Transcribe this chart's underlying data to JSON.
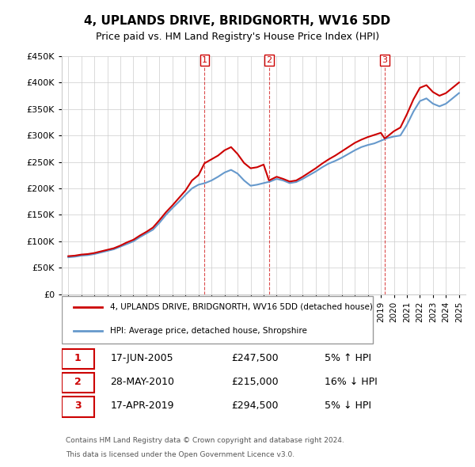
{
  "title": "4, UPLANDS DRIVE, BRIDGNORTH, WV16 5DD",
  "subtitle": "Price paid vs. HM Land Registry's House Price Index (HPI)",
  "footer1": "Contains HM Land Registry data © Crown copyright and database right 2024.",
  "footer2": "This data is licensed under the Open Government Licence v3.0.",
  "legend_property": "4, UPLANDS DRIVE, BRIDGNORTH, WV16 5DD (detached house)",
  "legend_hpi": "HPI: Average price, detached house, Shropshire",
  "transactions": [
    {
      "num": 1,
      "date": "17-JUN-2005",
      "price": 247500,
      "year": 2005.46,
      "pct": "5%",
      "dir": "↑"
    },
    {
      "num": 2,
      "date": "28-MAY-2010",
      "price": 215000,
      "year": 2010.41,
      "pct": "16%",
      "dir": "↓"
    },
    {
      "num": 3,
      "date": "17-APR-2019",
      "price": 294500,
      "year": 2019.29,
      "pct": "5%",
      "dir": "↓"
    }
  ],
  "property_color": "#cc0000",
  "hpi_color": "#6699cc",
  "grid_color": "#cccccc",
  "background_color": "#ffffff",
  "ylim": [
    0,
    450000
  ],
  "yticks": [
    0,
    50000,
    100000,
    150000,
    200000,
    250000,
    300000,
    350000,
    400000,
    450000
  ],
  "ytick_labels": [
    "£0",
    "£50K",
    "£100K",
    "£150K",
    "£200K",
    "£250K",
    "£300K",
    "£350K",
    "£400K",
    "£450K"
  ],
  "xlim": [
    1994.5,
    2025.5
  ],
  "hpi_data": {
    "years": [
      1995,
      1995.5,
      1996,
      1996.5,
      1997,
      1997.5,
      1998,
      1998.5,
      1999,
      1999.5,
      2000,
      2000.5,
      2001,
      2001.5,
      2002,
      2002.5,
      2003,
      2003.5,
      2004,
      2004.5,
      2005,
      2005.5,
      2006,
      2006.5,
      2007,
      2007.5,
      2008,
      2008.5,
      2009,
      2009.5,
      2010,
      2010.5,
      2011,
      2011.5,
      2012,
      2012.5,
      2013,
      2013.5,
      2014,
      2014.5,
      2015,
      2015.5,
      2016,
      2016.5,
      2017,
      2017.5,
      2018,
      2018.5,
      2019,
      2019.5,
      2020,
      2020.5,
      2021,
      2021.5,
      2022,
      2022.5,
      2023,
      2023.5,
      2024,
      2024.5,
      2025
    ],
    "values": [
      70000,
      71000,
      73000,
      74000,
      76000,
      79000,
      82000,
      85000,
      90000,
      95000,
      100000,
      108000,
      115000,
      122000,
      135000,
      150000,
      163000,
      175000,
      188000,
      200000,
      207000,
      210000,
      215000,
      222000,
      230000,
      235000,
      228000,
      215000,
      205000,
      207000,
      210000,
      213000,
      218000,
      215000,
      210000,
      212000,
      218000,
      225000,
      232000,
      240000,
      247000,
      252000,
      258000,
      265000,
      272000,
      278000,
      282000,
      285000,
      290000,
      295000,
      298000,
      300000,
      320000,
      345000,
      365000,
      370000,
      360000,
      355000,
      360000,
      370000,
      380000
    ]
  },
  "property_data": {
    "years": [
      1995,
      1995.5,
      1996,
      1996.5,
      1997,
      1997.5,
      1998,
      1998.5,
      1999,
      1999.5,
      2000,
      2000.5,
      2001,
      2001.5,
      2002,
      2002.5,
      2003,
      2003.5,
      2004,
      2004.5,
      2005,
      2005.46,
      2005.5,
      2006,
      2006.5,
      2007,
      2007.5,
      2008,
      2008.5,
      2009,
      2009.5,
      2010,
      2010.41,
      2010.5,
      2011,
      2011.5,
      2012,
      2012.5,
      2013,
      2013.5,
      2014,
      2014.5,
      2015,
      2015.5,
      2016,
      2016.5,
      2017,
      2017.5,
      2018,
      2018.5,
      2019,
      2019.29,
      2019.5,
      2020,
      2020.5,
      2021,
      2021.5,
      2022,
      2022.5,
      2023,
      2023.5,
      2024,
      2024.5,
      2025
    ],
    "values": [
      72000,
      73000,
      75000,
      76000,
      78000,
      81000,
      84000,
      87000,
      92000,
      98000,
      103000,
      111000,
      118000,
      126000,
      140000,
      155000,
      168000,
      182000,
      196000,
      215000,
      225000,
      247500,
      248000,
      255000,
      262000,
      272000,
      278000,
      265000,
      248000,
      238000,
      240000,
      245000,
      215000,
      216000,
      222000,
      218000,
      213000,
      215000,
      222000,
      230000,
      238000,
      247000,
      255000,
      262000,
      270000,
      278000,
      286000,
      292000,
      297000,
      301000,
      305000,
      294500,
      298000,
      308000,
      315000,
      340000,
      368000,
      390000,
      395000,
      382000,
      375000,
      380000,
      390000,
      400000
    ]
  }
}
